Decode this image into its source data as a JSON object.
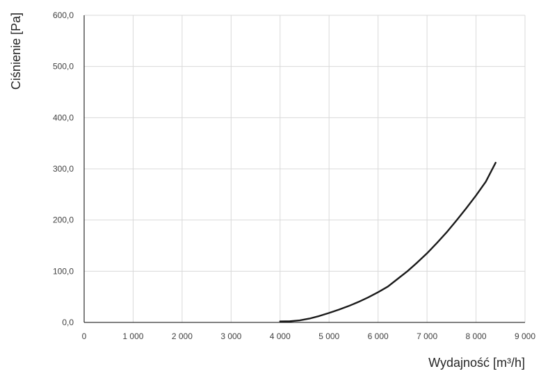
{
  "chart_data": {
    "type": "line",
    "xlabel": "Wydajność [m³/h]",
    "ylabel": "Ciśnienie [Pa]",
    "xlim": [
      0,
      9000
    ],
    "ylim": [
      0,
      600
    ],
    "x_ticks": [
      0,
      1000,
      2000,
      3000,
      4000,
      5000,
      6000,
      7000,
      8000,
      9000
    ],
    "x_tick_labels": [
      "0",
      "1 000",
      "2 000",
      "3 000",
      "4 000",
      "5 000",
      "6 000",
      "7 000",
      "8 000",
      "9 000"
    ],
    "y_ticks": [
      0,
      100,
      200,
      300,
      400,
      500,
      600
    ],
    "y_tick_labels": [
      "0,0",
      "100,0",
      "200,0",
      "300,0",
      "400,0",
      "500,0",
      "600,0"
    ],
    "grid": true,
    "colors": {
      "line": "#1a1a1a",
      "grid": "#d9d9d9",
      "axis": "#000000"
    },
    "series": [
      {
        "x": [
          4000,
          4200,
          4400,
          4600,
          4800,
          5000,
          5200,
          5400,
          5600,
          5800,
          6000,
          6200,
          6400,
          6600,
          6800,
          7000,
          7200,
          7400,
          7600,
          7800,
          8000,
          8200,
          8400
        ],
        "y": [
          2.0,
          2.2,
          4.0,
          7.5,
          12.5,
          18.5,
          25.0,
          32.0,
          40.0,
          49.0,
          59.0,
          70.0,
          85.0,
          100.0,
          117.0,
          135.0,
          155.0,
          176.0,
          199.0,
          223.0,
          248.0,
          275.0,
          312.0
        ]
      }
    ]
  }
}
